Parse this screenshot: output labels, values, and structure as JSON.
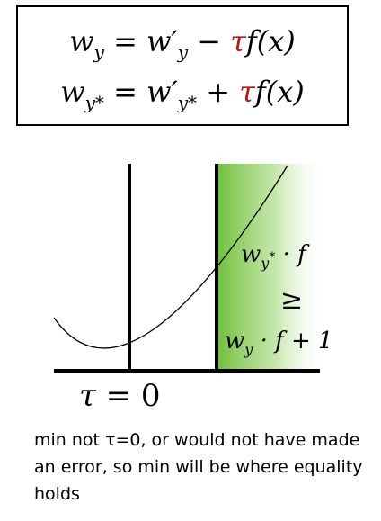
{
  "equations": {
    "line1": {
      "lhs_base": "w",
      "lhs_sub": "y",
      "eq": "=",
      "rhs_base": "w′",
      "rhs_sub": "y",
      "op": "−",
      "tau": "τ",
      "term": "f(x)"
    },
    "line2": {
      "lhs_base": "w",
      "lhs_sub": "y",
      "lhs_sup": "*",
      "eq": "=",
      "rhs_base": "w′",
      "rhs_sub": "y",
      "rhs_sup": "*",
      "op": "+",
      "tau": "τ",
      "term": "f(x)"
    }
  },
  "region_labels": {
    "top_base": "w",
    "top_sub": "y",
    "top_sup": "*",
    "top_rest": " · f",
    "middle": "≥",
    "bottom_base": "w",
    "bottom_sub": "y",
    "bottom_rest": " · f + 1"
  },
  "axis_label": {
    "symbol": "τ",
    "rest": " = 0"
  },
  "caption": "min not τ=0, or would not have made an error, so min will be where equality holds",
  "colors": {
    "tau": "#b51a1a",
    "shade": "#6fbf3a"
  }
}
